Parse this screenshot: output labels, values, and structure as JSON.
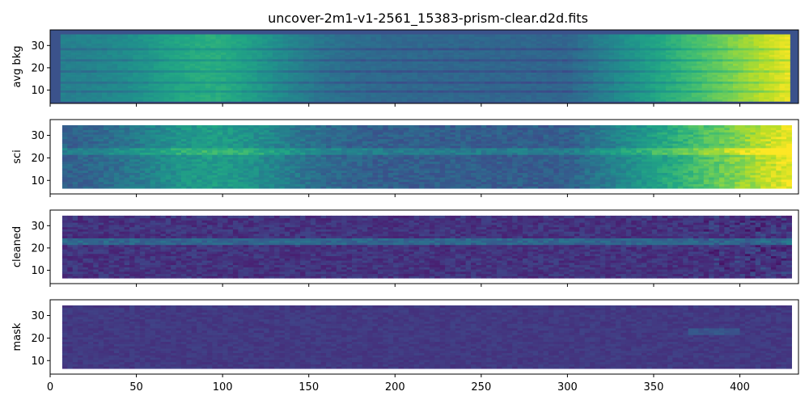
{
  "chart_data": {
    "type": "heatmap",
    "title": "uncover-2m1-v1-2561_15383-prism-clear.d2d.fits",
    "colormap": "viridis",
    "shared_x": true,
    "xlim": [
      0,
      434
    ],
    "x_ticks": [
      0,
      50,
      100,
      150,
      200,
      250,
      300,
      350,
      400
    ],
    "panels": [
      {
        "ylabel": "avg bkg",
        "ylim": [
          4,
          37
        ],
        "y_ticks": [
          10,
          20,
          30
        ],
        "data_extent_x": [
          6,
          428
        ],
        "data_extent_y": [
          5,
          35
        ],
        "background": "#3b528b",
        "peak_emission_x": 95
      },
      {
        "ylabel": "sci",
        "ylim": [
          4,
          37
        ],
        "y_ticks": [
          10,
          20,
          30
        ],
        "data_extent_x": [
          7,
          428
        ],
        "data_extent_y": [
          6.5,
          34.5
        ],
        "background": "#ffffff",
        "trace_y": 23
      },
      {
        "ylabel": "cleaned",
        "ylim": [
          4,
          37
        ],
        "y_ticks": [
          10,
          20,
          30
        ],
        "data_extent_x": [
          7,
          428
        ],
        "data_extent_y": [
          6.5,
          34.5
        ],
        "background": "#ffffff",
        "trace_y": 23
      },
      {
        "ylabel": "mask",
        "ylim": [
          4,
          37
        ],
        "y_ticks": [
          10,
          20,
          30
        ],
        "data_extent_x": [
          7,
          428
        ],
        "data_extent_y": [
          6.5,
          34.5
        ],
        "background": "#ffffff"
      }
    ]
  }
}
